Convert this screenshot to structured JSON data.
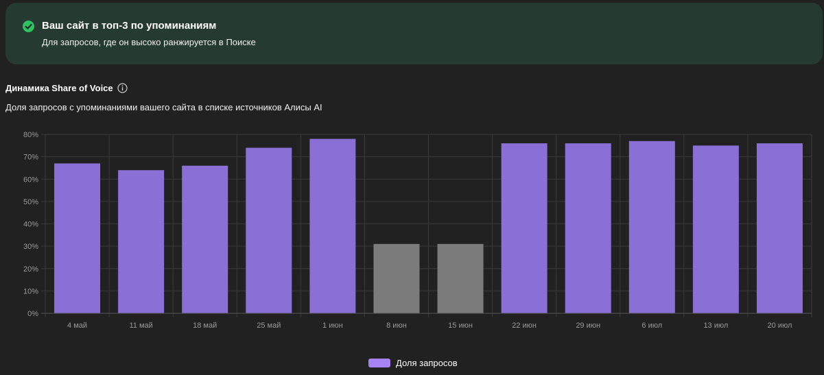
{
  "banner": {
    "title": "Ваш сайт в топ-3 по упоминаниям",
    "subtitle": "Для запросов, где он высоко ранжируется в Поиске",
    "icon": "check-circle-icon",
    "icon_color": "#2fc463",
    "background": "#253a30"
  },
  "section": {
    "title": "Динамика Share of Voice",
    "info_icon": "info-icon",
    "subtitle": "Доля запросов с упоминаниями вашего сайта в списке источников Алисы AI"
  },
  "legend": {
    "label": "Доля запросов",
    "color": "#a883f4"
  },
  "chart_data": {
    "type": "bar",
    "categories": [
      "4 май",
      "11 май",
      "18 май",
      "25 май",
      "1 июн",
      "8 июн",
      "15 июн",
      "22 июн",
      "29 июн",
      "6 июл",
      "13 июл",
      "20 июл"
    ],
    "series": [
      {
        "name": "Доля запросов",
        "values": [
          67,
          64,
          66,
          74,
          78,
          31,
          31,
          76,
          76,
          77,
          75,
          76
        ]
      }
    ],
    "bar_colors": [
      "#8a70d6",
      "#8a70d6",
      "#8a70d6",
      "#8a70d6",
      "#8a70d6",
      "#7b7b7b",
      "#7b7b7b",
      "#8a70d6",
      "#8a70d6",
      "#8a70d6",
      "#8a70d6",
      "#8a70d6"
    ],
    "yticks": [
      "0%",
      "10%",
      "20%",
      "30%",
      "40%",
      "50%",
      "60%",
      "70%",
      "80%"
    ],
    "ylim": [
      0,
      80
    ],
    "grid": true,
    "legend_position": "bottom-center"
  }
}
